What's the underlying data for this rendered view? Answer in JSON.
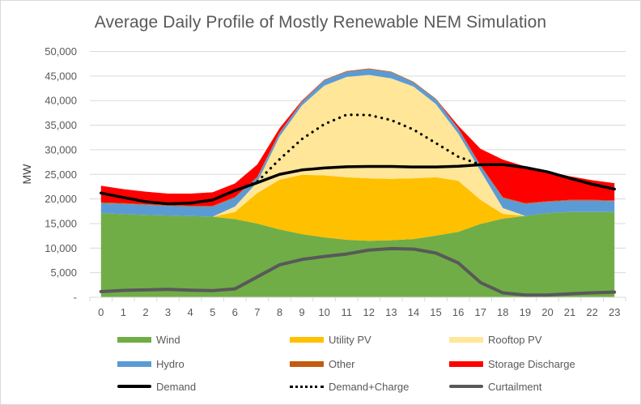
{
  "chart_data": {
    "type": "area",
    "title": "Average Daily Profile of Mostly Renewable NEM Simulation",
    "xlabel": "",
    "ylabel": "MW",
    "ylim": [
      0,
      50000
    ],
    "yticks": [
      0,
      5000,
      10000,
      15000,
      20000,
      25000,
      30000,
      35000,
      40000,
      45000,
      50000
    ],
    "ytick_labels": [
      "-",
      "5,000",
      "10,000",
      "15,000",
      "20,000",
      "25,000",
      "30,000",
      "35,000",
      "40,000",
      "45,000",
      "50,000"
    ],
    "grid": true,
    "legend_position": "bottom",
    "categories": [
      "0",
      "1",
      "2",
      "3",
      "4",
      "5",
      "6",
      "7",
      "8",
      "9",
      "10",
      "11",
      "12",
      "13",
      "14",
      "15",
      "16",
      "17",
      "18",
      "19",
      "20",
      "21",
      "22",
      "23"
    ],
    "stacked_series": [
      {
        "name": "Wind",
        "color": "#70AD47",
        "values": [
          17100,
          16900,
          16750,
          16640,
          16520,
          16400,
          15900,
          15000,
          13800,
          12850,
          12200,
          11700,
          11500,
          11600,
          11850,
          12550,
          13300,
          14900,
          16000,
          16550,
          17100,
          17350,
          17350,
          17350
        ]
      },
      {
        "name": "Utility PV",
        "color": "#FFC000",
        "values": [
          0,
          0,
          0,
          0,
          0,
          0,
          1450,
          6200,
          10100,
          12050,
          12600,
          12700,
          12700,
          12500,
          12350,
          11850,
          10400,
          4900,
          950,
          0,
          0,
          0,
          0,
          0
        ]
      },
      {
        "name": "Rooftop PV",
        "color": "#FFE699",
        "values": [
          0,
          0,
          0,
          0,
          0,
          0,
          1100,
          2200,
          8800,
          14100,
          18250,
          20400,
          21030,
          20420,
          18660,
          14900,
          9600,
          5900,
          1200,
          0,
          0,
          0,
          0,
          0
        ]
      },
      {
        "name": "Hydro",
        "color": "#5B9BD5",
        "values": [
          2050,
          2100,
          2050,
          1940,
          1930,
          2050,
          1800,
          950,
          700,
          700,
          1050,
          1050,
          1170,
          1230,
          840,
          950,
          950,
          1000,
          2050,
          2450,
          2300,
          2320,
          2320,
          2220
        ]
      },
      {
        "name": "Other",
        "color": "#C55A11",
        "values": [
          150,
          150,
          150,
          150,
          150,
          150,
          150,
          150,
          150,
          150,
          150,
          150,
          150,
          150,
          150,
          150,
          150,
          150,
          150,
          150,
          150,
          150,
          150,
          150
        ]
      },
      {
        "name": "Storage Discharge",
        "color": "#FF0000",
        "values": [
          3380,
          2850,
          2520,
          2350,
          2480,
          2750,
          2750,
          2500,
          850,
          150,
          0,
          0,
          0,
          0,
          0,
          0,
          500,
          3350,
          7650,
          7450,
          6050,
          4780,
          3980,
          3480
        ]
      }
    ],
    "line_series": [
      {
        "name": "Demand",
        "color": "#000000",
        "style": "solid",
        "values": [
          21200,
          20300,
          19450,
          19000,
          19150,
          19800,
          21700,
          23300,
          25000,
          25900,
          26300,
          26550,
          26600,
          26600,
          26500,
          26500,
          26650,
          26950,
          27000,
          26400,
          25500,
          24200,
          23000,
          22000
        ]
      },
      {
        "name": "Demand+Charge",
        "color": "#000000",
        "style": "dotted",
        "values": [
          null,
          null,
          null,
          null,
          null,
          null,
          21700,
          23500,
          28060,
          32180,
          35200,
          37120,
          37070,
          36030,
          34100,
          31360,
          28600,
          26950,
          null,
          null,
          null,
          null,
          null,
          null
        ]
      },
      {
        "name": "Curtailment",
        "color": "#595959",
        "style": "solid",
        "values": [
          1150,
          1400,
          1500,
          1600,
          1450,
          1350,
          1700,
          4150,
          6600,
          7700,
          8300,
          8800,
          9600,
          9900,
          9800,
          9000,
          7000,
          3000,
          900,
          450,
          450,
          700,
          900,
          1050
        ]
      }
    ],
    "legend": [
      "Wind",
      "Utility PV",
      "Rooftop PV",
      "Hydro",
      "Other",
      "Storage Discharge",
      "Demand",
      "Demand+Charge",
      "Curtailment"
    ]
  }
}
